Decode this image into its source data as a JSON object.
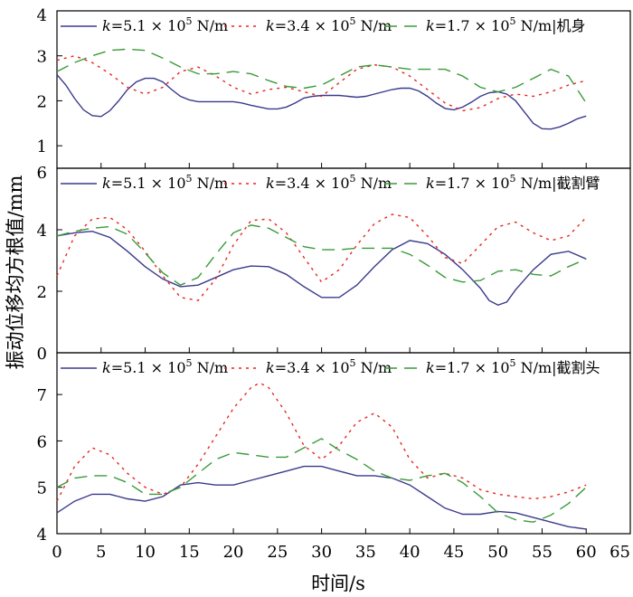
{
  "figure": {
    "xlabel": "时间/s",
    "ylabel": "振动位移均方根值/mm",
    "x_ticks": [
      "0",
      "5",
      "10",
      "15",
      "20",
      "25",
      "30",
      "35",
      "40",
      "45",
      "50",
      "55",
      "60",
      "65"
    ]
  },
  "colors": {
    "k51": "#3a3a8c",
    "k34": "#e8251e",
    "k17": "#3a9a3a"
  },
  "legend_k": "k",
  "legend_labels": [
    {
      "eq": "=5.1 × 10",
      "exp": "5",
      "unit": " N/m"
    },
    {
      "eq": "=3.4 × 10",
      "exp": "5",
      "unit": " N/m"
    },
    {
      "eq": "=1.7 × 10",
      "exp": "5",
      "unit": " N/m"
    }
  ],
  "chart_data": [
    {
      "type": "line",
      "panel_label": "机身",
      "xlim": [
        0,
        65
      ],
      "ylim": [
        0.5,
        4
      ],
      "y_ticks": [
        "1",
        "2",
        "3",
        "4"
      ],
      "series": [
        {
          "name": "k=5.1×10^5 N/m",
          "style": "solid",
          "x": [
            0,
            1,
            2,
            3,
            4,
            5,
            6,
            7,
            8,
            9,
            10,
            11,
            12,
            13,
            14,
            15,
            16,
            17,
            18,
            19,
            20,
            21,
            22,
            23,
            24,
            25,
            26,
            27,
            28,
            29,
            30,
            31,
            32,
            33,
            34,
            35,
            36,
            37,
            38,
            39,
            40,
            41,
            42,
            43,
            44,
            45,
            46,
            47,
            48,
            49,
            50,
            51,
            52,
            53,
            54,
            55,
            56,
            57,
            58,
            59,
            60
          ],
          "y": [
            2.58,
            2.35,
            2.05,
            1.8,
            1.67,
            1.65,
            1.78,
            2.0,
            2.25,
            2.42,
            2.5,
            2.5,
            2.42,
            2.25,
            2.1,
            2.02,
            1.98,
            1.98,
            1.98,
            1.98,
            1.98,
            1.95,
            1.9,
            1.86,
            1.82,
            1.82,
            1.86,
            1.95,
            2.06,
            2.1,
            2.12,
            2.12,
            2.12,
            2.1,
            2.08,
            2.1,
            2.15,
            2.2,
            2.25,
            2.28,
            2.28,
            2.22,
            2.1,
            1.95,
            1.83,
            1.8,
            1.86,
            1.97,
            2.1,
            2.18,
            2.2,
            2.15,
            2.0,
            1.75,
            1.5,
            1.38,
            1.37,
            1.42,
            1.5,
            1.6,
            1.66
          ]
        },
        {
          "name": "k=3.4×10^5 N/m",
          "style": "dotted",
          "x": [
            0,
            2,
            4,
            6,
            8,
            10,
            12,
            14,
            16,
            18,
            20,
            22,
            24,
            26,
            28,
            30,
            32,
            34,
            36,
            38,
            40,
            42,
            44,
            46,
            48,
            50,
            52,
            54,
            56,
            58,
            60
          ],
          "y": [
            2.9,
            3.0,
            2.85,
            2.6,
            2.3,
            2.15,
            2.3,
            2.65,
            2.75,
            2.55,
            2.3,
            2.15,
            2.25,
            2.3,
            2.2,
            2.1,
            2.4,
            2.7,
            2.8,
            2.75,
            2.55,
            2.25,
            1.95,
            1.78,
            1.85,
            2.05,
            2.15,
            2.1,
            2.2,
            2.35,
            2.45
          ]
        },
        {
          "name": "k=1.7×10^5 N/m",
          "style": "dashed",
          "x": [
            0,
            2,
            4,
            6,
            8,
            10,
            12,
            14,
            16,
            18,
            20,
            22,
            24,
            26,
            28,
            30,
            32,
            34,
            36,
            38,
            40,
            42,
            44,
            46,
            48,
            50,
            52,
            54,
            56,
            58,
            60
          ],
          "y": [
            2.65,
            2.85,
            3.0,
            3.12,
            3.15,
            3.12,
            2.95,
            2.75,
            2.6,
            2.6,
            2.65,
            2.6,
            2.45,
            2.32,
            2.28,
            2.35,
            2.55,
            2.75,
            2.8,
            2.75,
            2.7,
            2.7,
            2.7,
            2.55,
            2.3,
            2.2,
            2.3,
            2.5,
            2.7,
            2.55,
            1.95
          ]
        }
      ]
    },
    {
      "type": "line",
      "panel_label": "截割臂",
      "xlim": [
        0,
        65
      ],
      "ylim": [
        0,
        6
      ],
      "y_ticks": [
        "0",
        "2",
        "4",
        "6"
      ],
      "series": [
        {
          "name": "k=5.1×10^5 N/m",
          "style": "solid",
          "x": [
            0,
            2,
            4,
            6,
            8,
            10,
            12,
            14,
            16,
            18,
            20,
            22,
            24,
            26,
            28,
            30,
            32,
            34,
            36,
            38,
            40,
            42,
            44,
            46,
            48,
            49,
            50,
            51,
            52,
            54,
            56,
            58,
            60
          ],
          "y": [
            3.8,
            3.9,
            3.95,
            3.75,
            3.3,
            2.8,
            2.4,
            2.15,
            2.2,
            2.45,
            2.7,
            2.82,
            2.8,
            2.55,
            2.15,
            1.8,
            1.8,
            2.2,
            2.8,
            3.35,
            3.65,
            3.55,
            3.2,
            2.7,
            2.1,
            1.7,
            1.55,
            1.65,
            2.05,
            2.7,
            3.2,
            3.3,
            3.05
          ]
        },
        {
          "name": "k=3.4×10^5 N/m",
          "style": "dotted",
          "x": [
            0,
            2,
            4,
            6,
            8,
            10,
            12,
            14,
            16,
            18,
            20,
            22,
            24,
            26,
            28,
            30,
            32,
            34,
            36,
            38,
            40,
            42,
            44,
            46,
            48,
            50,
            52,
            54,
            56,
            58,
            60
          ],
          "y": [
            2.5,
            3.8,
            4.35,
            4.4,
            4.0,
            3.3,
            2.5,
            1.8,
            1.7,
            2.4,
            3.5,
            4.3,
            4.35,
            3.9,
            3.1,
            2.3,
            2.7,
            3.5,
            4.2,
            4.5,
            4.4,
            3.8,
            3.1,
            2.9,
            3.5,
            4.1,
            4.25,
            3.9,
            3.65,
            3.8,
            4.4
          ]
        },
        {
          "name": "k=1.7×10^5 N/m",
          "style": "dashed",
          "x": [
            0,
            2,
            4,
            6,
            8,
            10,
            12,
            14,
            16,
            18,
            20,
            22,
            24,
            26,
            28,
            30,
            32,
            34,
            36,
            38,
            40,
            42,
            44,
            46,
            48,
            50,
            52,
            54,
            56,
            58,
            60
          ],
          "y": [
            3.8,
            3.95,
            4.05,
            4.1,
            3.85,
            3.25,
            2.6,
            2.2,
            2.45,
            3.2,
            3.9,
            4.15,
            4.05,
            3.75,
            3.45,
            3.35,
            3.35,
            3.4,
            3.4,
            3.4,
            3.2,
            2.85,
            2.45,
            2.3,
            2.35,
            2.65,
            2.7,
            2.55,
            2.5,
            2.8,
            3.05
          ]
        }
      ]
    },
    {
      "type": "line",
      "panel_label": "截割头",
      "xlim": [
        0,
        65
      ],
      "ylim": [
        4,
        7.9
      ],
      "y_ticks": [
        "4",
        "5",
        "6",
        "7"
      ],
      "series": [
        {
          "name": "k=5.1×10^5 N/m",
          "style": "solid",
          "x": [
            0,
            2,
            4,
            6,
            8,
            10,
            12,
            14,
            16,
            18,
            20,
            22,
            24,
            26,
            28,
            30,
            32,
            34,
            36,
            38,
            40,
            42,
            44,
            46,
            48,
            50,
            52,
            54,
            56,
            58,
            60
          ],
          "y": [
            4.45,
            4.7,
            4.85,
            4.85,
            4.75,
            4.7,
            4.8,
            5.05,
            5.1,
            5.05,
            5.05,
            5.15,
            5.25,
            5.35,
            5.45,
            5.45,
            5.35,
            5.25,
            5.25,
            5.2,
            5.05,
            4.8,
            4.55,
            4.42,
            4.42,
            4.48,
            4.45,
            4.35,
            4.25,
            4.15,
            4.1
          ]
        },
        {
          "name": "k=3.4×10^5 N/m",
          "style": "dotted",
          "x": [
            0,
            2,
            4,
            6,
            8,
            10,
            12,
            14,
            16,
            18,
            20,
            22,
            23,
            24,
            26,
            28,
            30,
            32,
            34,
            36,
            38,
            40,
            42,
            44,
            46,
            48,
            50,
            52,
            54,
            56,
            58,
            60
          ],
          "y": [
            4.7,
            5.45,
            5.85,
            5.7,
            5.3,
            5.0,
            4.85,
            5.0,
            5.5,
            6.1,
            6.7,
            7.15,
            7.25,
            7.15,
            6.6,
            5.9,
            5.6,
            5.9,
            6.4,
            6.6,
            6.3,
            5.6,
            5.2,
            5.3,
            5.2,
            4.95,
            4.85,
            4.8,
            4.75,
            4.8,
            4.9,
            5.05
          ]
        },
        {
          "name": "k=1.7×10^5 N/m",
          "style": "dashed",
          "x": [
            0,
            2,
            4,
            6,
            8,
            10,
            12,
            14,
            16,
            18,
            20,
            22,
            24,
            26,
            28,
            30,
            32,
            34,
            36,
            38,
            40,
            42,
            44,
            46,
            48,
            50,
            52,
            54,
            56,
            58,
            60
          ],
          "y": [
            5.0,
            5.2,
            5.25,
            5.25,
            5.1,
            4.85,
            4.85,
            5.0,
            5.3,
            5.6,
            5.75,
            5.7,
            5.65,
            5.65,
            5.85,
            6.05,
            5.8,
            5.6,
            5.35,
            5.2,
            5.15,
            5.25,
            5.3,
            5.1,
            4.8,
            4.45,
            4.3,
            4.25,
            4.4,
            4.65,
            5.0
          ]
        }
      ]
    }
  ]
}
